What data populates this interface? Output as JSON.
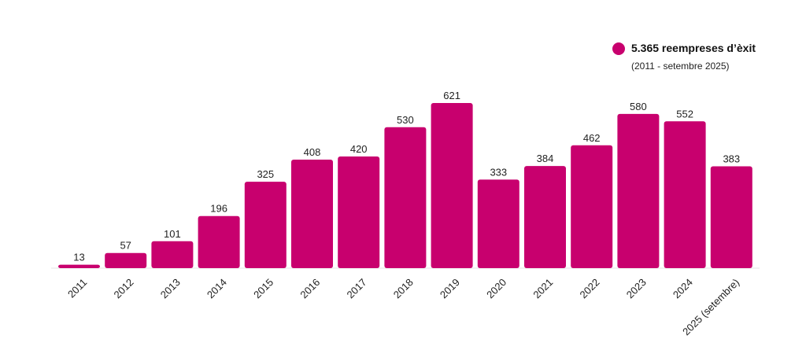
{
  "chart_data": {
    "type": "bar",
    "categories": [
      "2011",
      "2012",
      "2013",
      "2014",
      "2015",
      "2016",
      "2017",
      "2018",
      "2019",
      "2020",
      "2021",
      "2022",
      "2023",
      "2024",
      "2025 (setembre)"
    ],
    "values": [
      13,
      57,
      101,
      196,
      325,
      408,
      420,
      530,
      621,
      333,
      384,
      462,
      580,
      552,
      383
    ],
    "title": "",
    "xlabel": "",
    "ylabel": "",
    "ylim": [
      0,
      621
    ],
    "grid": false,
    "bar_color": "#c8006e",
    "legend_placement": "top-right"
  },
  "legend": {
    "title": "5.365 reempreses d’èxit",
    "subtitle": "(2011 - setembre 2025)",
    "dot_color": "#c8006e"
  }
}
